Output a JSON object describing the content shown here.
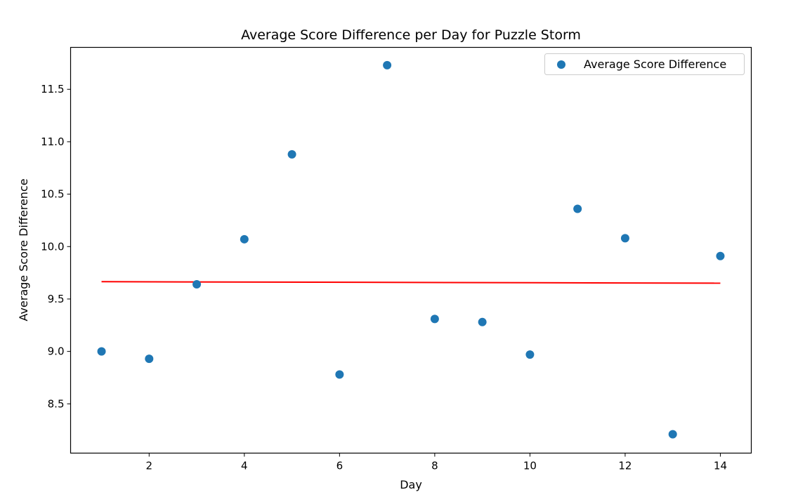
{
  "chart_data": {
    "type": "scatter",
    "title": "Average Score Difference per Day for Puzzle Storm",
    "xlabel": "Day",
    "ylabel": "Average Score Difference",
    "xlim": [
      0.35,
      14.65
    ],
    "ylim": [
      8.03,
      11.9
    ],
    "x_ticks": [
      2,
      4,
      6,
      8,
      10,
      12,
      14
    ],
    "x_tick_labels": [
      "2",
      "4",
      "6",
      "8",
      "10",
      "12",
      "14"
    ],
    "y_ticks": [
      8.5,
      9.0,
      9.5,
      10.0,
      10.5,
      11.0,
      11.5
    ],
    "y_tick_labels": [
      "8.5",
      "9.0",
      "9.5",
      "10.0",
      "10.5",
      "11.0",
      "11.5"
    ],
    "grid": false,
    "legend_position": "top-right",
    "series": [
      {
        "name": "Average Score Difference",
        "kind": "scatter",
        "color": "#1f77b4",
        "x": [
          1,
          2,
          3,
          4,
          5,
          6,
          7,
          8,
          9,
          10,
          11,
          12,
          13,
          14
        ],
        "y": [
          9.0,
          8.93,
          9.64,
          10.07,
          10.88,
          8.78,
          11.73,
          9.31,
          9.28,
          8.97,
          10.36,
          10.08,
          8.21,
          9.91
        ]
      },
      {
        "kind": "line",
        "color": "#ff0000",
        "x": [
          1,
          14
        ],
        "y": [
          9.665,
          9.651
        ]
      }
    ]
  }
}
